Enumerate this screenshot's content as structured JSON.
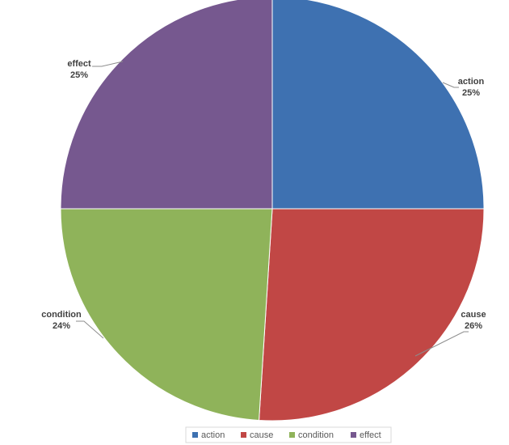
{
  "chart_data": {
    "type": "pie",
    "title": "",
    "start_angle_deg": 0,
    "direction": "clockwise",
    "legend_position": "bottom",
    "series": [
      {
        "name": "",
        "slices": [
          {
            "label": "action",
            "value": 25,
            "value_label": "25%",
            "color": "#3e71b1"
          },
          {
            "label": "cause",
            "value": 26,
            "value_label": "26%",
            "color": "#c14745"
          },
          {
            "label": "condition",
            "value": 24,
            "value_label": "24%",
            "color": "#8fb35a"
          },
          {
            "label": "effect",
            "value": 25,
            "value_label": "25%",
            "color": "#76588f"
          }
        ]
      }
    ]
  }
}
